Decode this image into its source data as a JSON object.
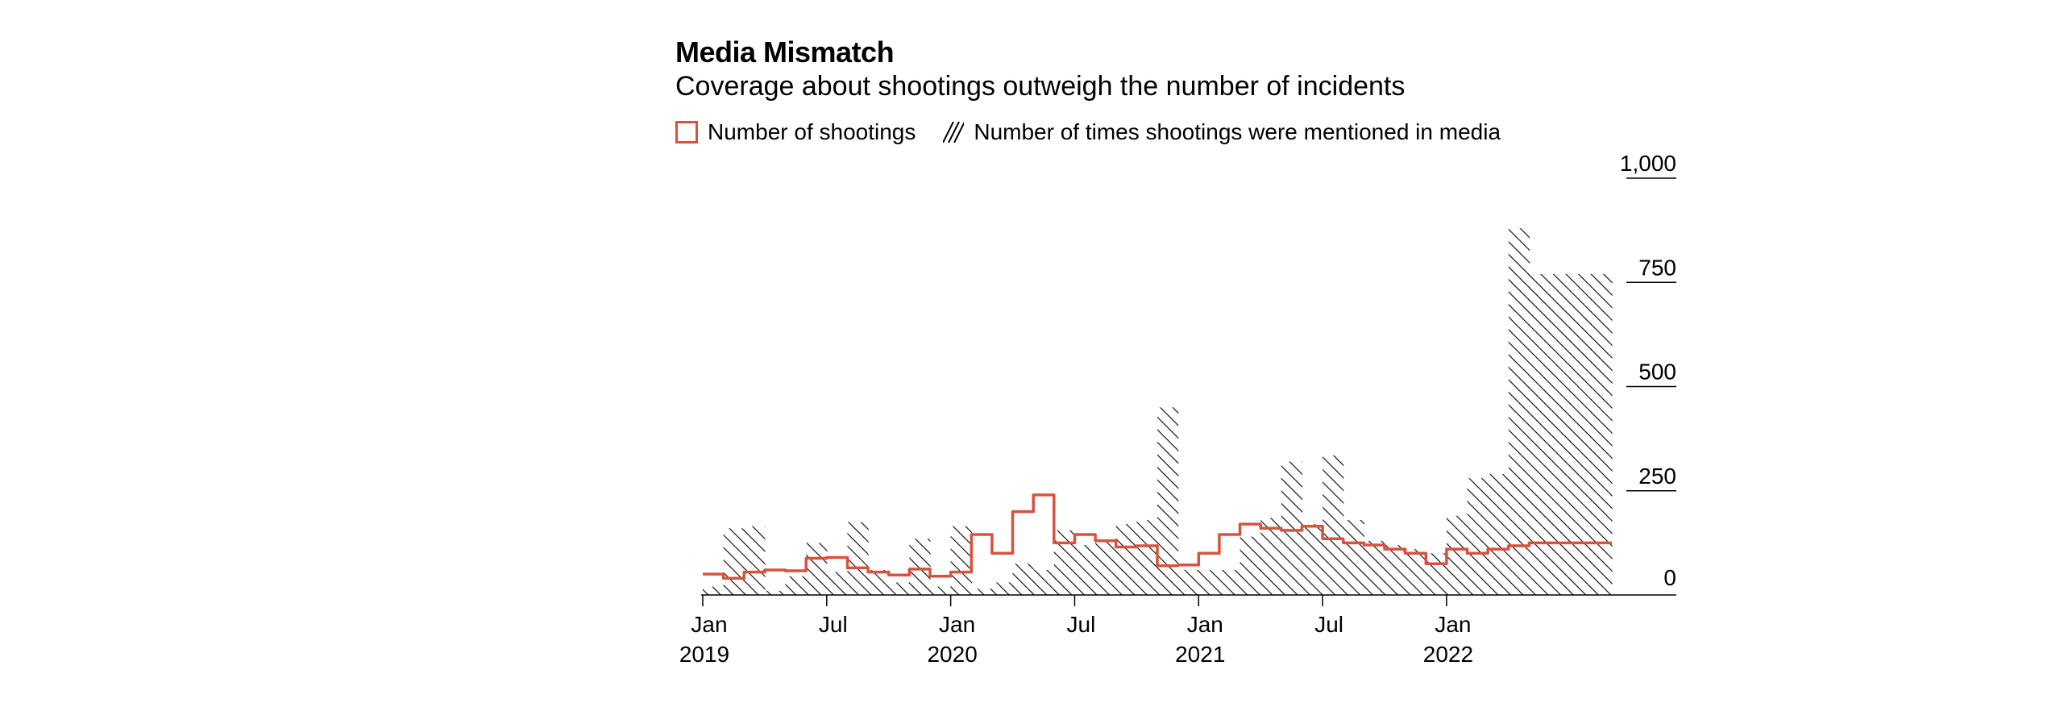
{
  "chart_data": {
    "type": "bar",
    "title": "Media Mismatch",
    "subtitle": "Coverage about shootings outweigh the number of incidents",
    "legend": [
      {
        "name": "Number of shootings",
        "style": "line",
        "color": "#d9523f"
      },
      {
        "name": "Number of times shootings were mentioned in media",
        "style": "hatch",
        "color": "#000000"
      }
    ],
    "legend_position": "top-left",
    "grid": false,
    "ylim": [
      0,
      1000
    ],
    "y_ticks": [
      {
        "value": 0,
        "label": "0"
      },
      {
        "value": 250,
        "label": "250"
      },
      {
        "value": 500,
        "label": "500"
      },
      {
        "value": 750,
        "label": "750"
      },
      {
        "value": 1000,
        "label": "1,000"
      }
    ],
    "x_ticks": [
      {
        "month": "2019-01",
        "label": "Jan",
        "year": "2019"
      },
      {
        "month": "2019-07",
        "label": "Jul",
        "year": ""
      },
      {
        "month": "2020-01",
        "label": "Jan",
        "year": "2020"
      },
      {
        "month": "2020-07",
        "label": "Jul",
        "year": ""
      },
      {
        "month": "2021-01",
        "label": "Jan",
        "year": "2021"
      },
      {
        "month": "2021-07",
        "label": "Jul",
        "year": ""
      },
      {
        "month": "2022-01",
        "label": "Jan",
        "year": "2022"
      }
    ],
    "months": [
      "2019-01",
      "2019-02",
      "2019-03",
      "2019-04",
      "2019-05",
      "2019-06",
      "2019-07",
      "2019-08",
      "2019-09",
      "2019-10",
      "2019-11",
      "2019-12",
      "2020-01",
      "2020-02",
      "2020-03",
      "2020-04",
      "2020-05",
      "2020-06",
      "2020-07",
      "2020-08",
      "2020-09",
      "2020-10",
      "2020-11",
      "2020-12",
      "2021-01",
      "2021-02",
      "2021-03",
      "2021-04",
      "2021-05",
      "2021-06",
      "2021-07",
      "2021-08",
      "2021-09",
      "2021-10",
      "2021-11",
      "2021-12",
      "2022-01",
      "2022-02",
      "2022-03",
      "2022-04",
      "2022-05",
      "2022-06",
      "2022-07",
      "2022-08"
    ],
    "series": [
      {
        "name": "Number of times shootings were mentioned in media",
        "values": [
          20,
          160,
          165,
          10,
          45,
          125,
          55,
          175,
          60,
          30,
          135,
          20,
          165,
          15,
          30,
          75,
          60,
          155,
          120,
          130,
          170,
          180,
          450,
          60,
          60,
          60,
          140,
          185,
          320,
          170,
          335,
          180,
          130,
          120,
          110,
          100,
          190,
          280,
          290,
          880,
          770,
          770,
          770,
          770
        ]
      },
      {
        "name": "Number of shootings",
        "values": [
          50,
          40,
          55,
          60,
          58,
          88,
          90,
          65,
          55,
          48,
          62,
          45,
          55,
          145,
          100,
          200,
          240,
          125,
          145,
          130,
          115,
          118,
          70,
          72,
          100,
          145,
          170,
          160,
          155,
          165,
          135,
          125,
          120,
          110,
          100,
          75,
          110,
          100,
          110,
          118,
          125,
          125,
          125,
          125
        ]
      }
    ]
  }
}
